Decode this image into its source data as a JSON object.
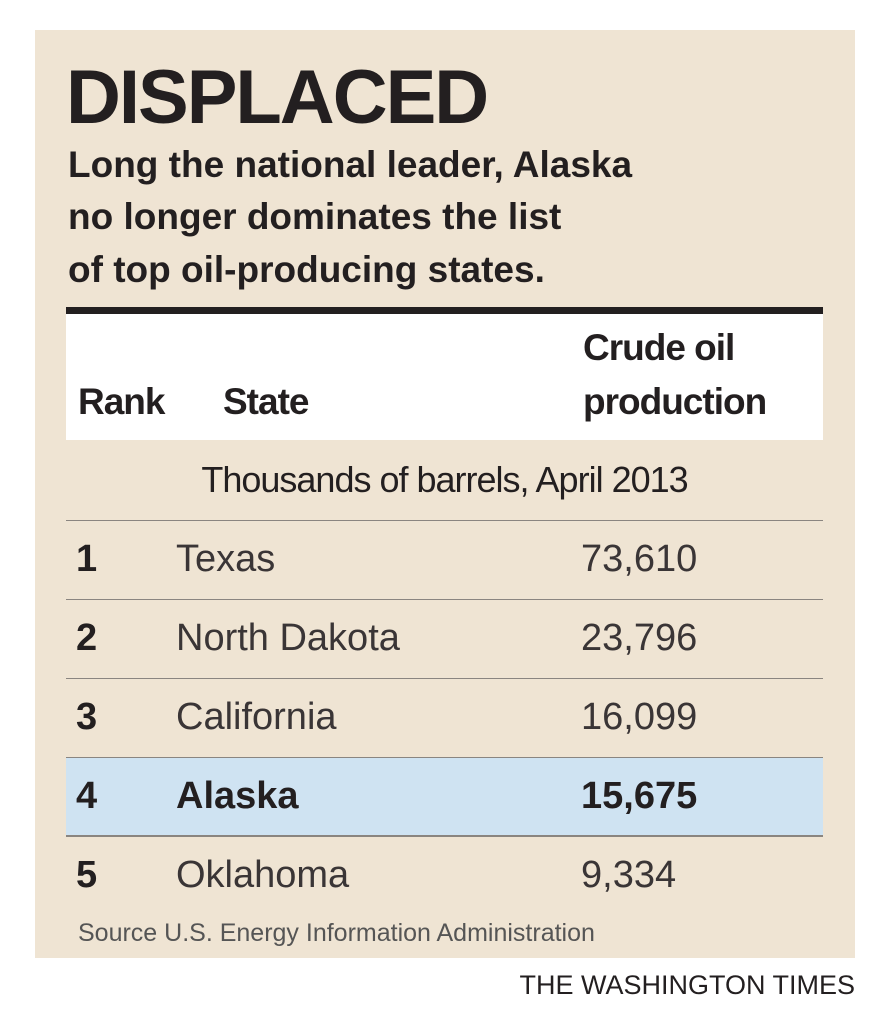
{
  "title": "DISPLACED",
  "subtitle": [
    "Long the national leader, Alaska",
    "no longer dominates the list",
    "of top oil-producing states."
  ],
  "table": {
    "headers": {
      "rank": "Rank",
      "state": "State",
      "production": [
        "Crude oil",
        "production"
      ]
    },
    "unit_note": "Thousands of barrels, April 2013",
    "rows": [
      {
        "rank": "1",
        "state": "Texas",
        "production": "73,610",
        "highlighted": false
      },
      {
        "rank": "2",
        "state": "North Dakota",
        "production": "23,796",
        "highlighted": false
      },
      {
        "rank": "3",
        "state": "California",
        "production": "16,099",
        "highlighted": false
      },
      {
        "rank": "4",
        "state": "Alaska",
        "production": "15,675",
        "highlighted": true
      },
      {
        "rank": "5",
        "state": "Oklahoma",
        "production": "9,334",
        "highlighted": false
      }
    ]
  },
  "source": "Source U.S. Energy Information Administration",
  "credit": "THE WASHINGTON TIMES"
}
